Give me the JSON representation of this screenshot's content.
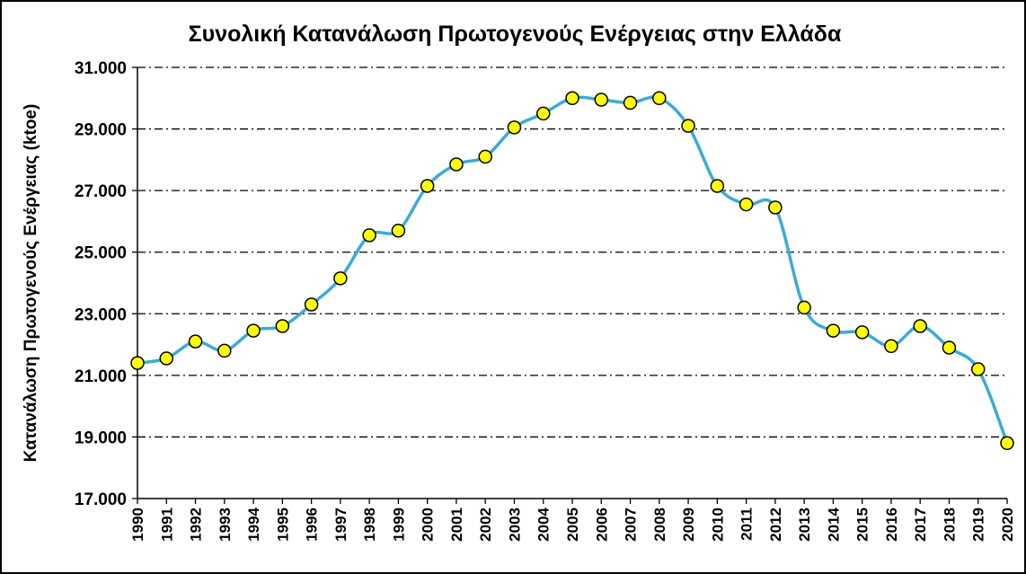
{
  "chart_data": {
    "type": "line",
    "title": "Συνολική Κατανάλωση Πρωτογενούς Ενέργειας στην Ελλάδα",
    "xlabel": "",
    "ylabel": "Κατανάλωση Πρωτογενούς Ενέργειας (ktoe)",
    "ylim": [
      17000,
      31000
    ],
    "yticks": [
      17000,
      19000,
      21000,
      23000,
      25000,
      27000,
      29000,
      31000
    ],
    "ytick_labels": [
      "17.000",
      "19.000",
      "21.000",
      "23.000",
      "25.000",
      "27.000",
      "29.000",
      "31.000"
    ],
    "grid": "horizontal dash-dot",
    "legend": "none",
    "categories": [
      "1990",
      "1991",
      "1992",
      "1993",
      "1994",
      "1995",
      "1996",
      "1997",
      "1998",
      "1999",
      "2000",
      "2001",
      "2002",
      "2003",
      "2004",
      "2005",
      "2006",
      "2007",
      "2008",
      "2009",
      "2010",
      "2011",
      "2012",
      "2013",
      "2014",
      "2015",
      "2016",
      "2017",
      "2018",
      "2019",
      "2020"
    ],
    "values": [
      21400,
      21550,
      22100,
      21800,
      22450,
      22600,
      23300,
      24150,
      25550,
      25700,
      27150,
      27850,
      28100,
      29050,
      29500,
      30000,
      29950,
      29850,
      30000,
      29100,
      27150,
      26550,
      26450,
      23200,
      22450,
      22400,
      21950,
      22600,
      21900,
      21200,
      18800
    ],
    "series_color": "#3EAAD6",
    "marker_color": "#FFFF00"
  }
}
